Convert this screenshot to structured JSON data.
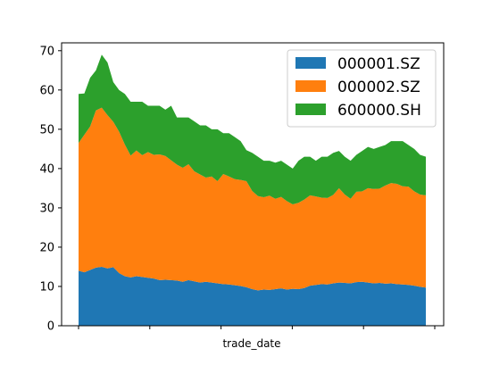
{
  "colors": {
    "series": [
      "#1f77b4",
      "#ff7f0e",
      "#2ca02c"
    ],
    "axis": "#000000",
    "legend_border": "#cccccc"
  },
  "chart_data": {
    "type": "area",
    "stacked": true,
    "title": "",
    "xlabel": "trade_date",
    "ylabel": "",
    "ylim": [
      0,
      72
    ],
    "yticks": [
      0,
      10,
      20,
      30,
      40,
      50,
      60,
      70
    ],
    "x_tick_count": 6,
    "legend_position": "top-right",
    "grid": false,
    "x": [
      0,
      1,
      2,
      3,
      4,
      5,
      6,
      7,
      8,
      9,
      10,
      11,
      12,
      13,
      14,
      15,
      16,
      17,
      18,
      19,
      20,
      21,
      22,
      23,
      24,
      25,
      26,
      27,
      28,
      29,
      30,
      31,
      32,
      33,
      34,
      35,
      36,
      37,
      38,
      39,
      40,
      41,
      42,
      43,
      44,
      45,
      46,
      47,
      48,
      49,
      50,
      51,
      52,
      53,
      54,
      55,
      56,
      57,
      58,
      59,
      60
    ],
    "series": [
      {
        "name": "000001.SZ",
        "values": [
          14,
          13.6,
          14.2,
          14.8,
          15,
          14.6,
          14.9,
          13.4,
          12.6,
          12.3,
          12.6,
          12.4,
          12.2,
          12,
          11.6,
          11.7,
          11.6,
          11.5,
          11.2,
          11.6,
          11.3,
          11,
          11.2,
          11,
          10.8,
          10.6,
          10.5,
          10.3,
          10.1,
          9.8,
          9.3,
          9,
          9.2,
          9.1,
          9.3,
          9.5,
          9.2,
          9.4,
          9.3,
          9.6,
          10.2,
          10.4,
          10.6,
          10.5,
          10.8,
          11,
          10.9,
          10.8,
          11.1,
          11.2,
          11,
          10.8,
          10.9,
          10.7,
          10.8,
          10.6,
          10.5,
          10.4,
          10.2,
          9.9,
          9.7
        ]
      },
      {
        "name": "000002.SZ",
        "values": [
          32.5,
          35,
          36.5,
          40,
          40.5,
          39,
          37,
          36,
          33.5,
          31,
          32,
          31,
          32,
          31.5,
          32,
          31.5,
          30.5,
          29.5,
          29,
          29.5,
          28,
          27.5,
          26.5,
          27,
          26,
          28,
          27.5,
          27,
          27,
          27,
          25,
          24,
          23.5,
          24,
          23,
          23.3,
          22.5,
          21.5,
          22,
          22.5,
          23,
          22.5,
          22,
          22,
          22.5,
          24,
          22.5,
          21.5,
          23,
          23,
          24,
          24,
          24,
          25,
          25.5,
          25.5,
          25,
          25,
          24,
          23.5,
          23.5
        ]
      },
      {
        "name": "600000.SH",
        "values": [
          12.5,
          10.5,
          12.4,
          10.2,
          13.5,
          13.4,
          10.1,
          10.6,
          12.9,
          13.7,
          12.4,
          13.6,
          11.8,
          12.5,
          12.4,
          11.8,
          13.9,
          12,
          12.8,
          11.9,
          12.7,
          12.5,
          13.3,
          12,
          13.2,
          10.4,
          11,
          10.7,
          9.9,
          7.9,
          9.7,
          10,
          9.3,
          8.9,
          9.2,
          9.2,
          9.3,
          9.1,
          10.7,
          10.9,
          9.8,
          9.1,
          10.4,
          10.5,
          10.7,
          9.5,
          9.6,
          9.7,
          9.4,
          10.3,
          10.5,
          10.2,
          10.6,
          10.3,
          10.7,
          10.9,
          11.5,
          10.6,
          10.8,
          10.1,
          9.8
        ]
      }
    ]
  }
}
